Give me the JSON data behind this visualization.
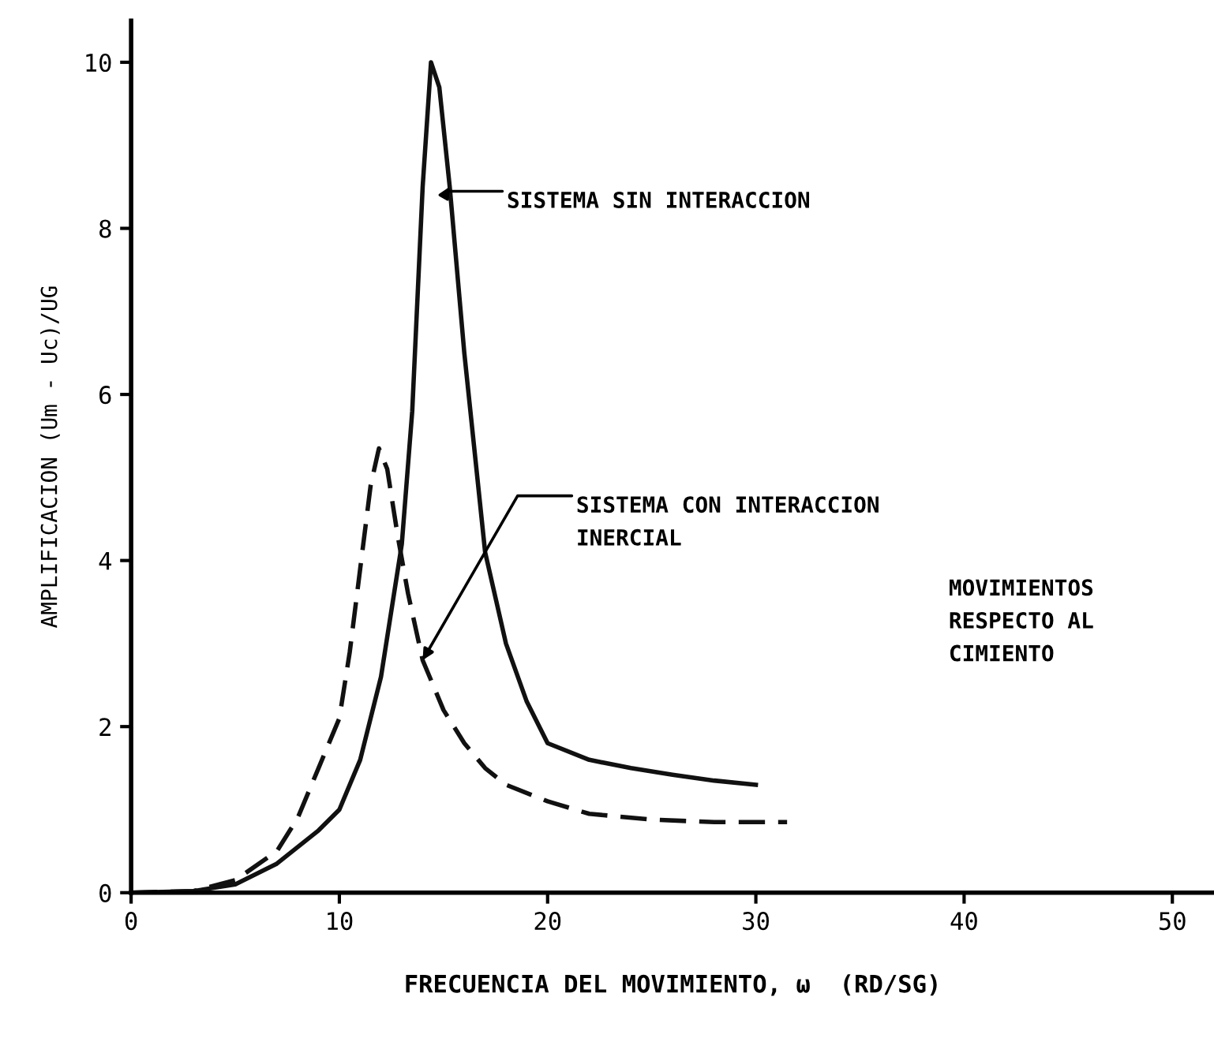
{
  "chart_data": {
    "type": "line",
    "xlabel": "FRECUENCIA DEL MOVIMIENTO, ω  (RD/SG)",
    "ylabel": "AMPLIFICACION (Um - Uc)/UG",
    "xlim": [
      0,
      52
    ],
    "ylim": [
      0,
      10.5
    ],
    "xticks": [
      0,
      10,
      20,
      30,
      40,
      50
    ],
    "yticks": [
      0,
      2,
      4,
      6,
      8,
      10
    ],
    "grid": false,
    "legend": false,
    "series": [
      {
        "color": "#111111",
        "line_style": "solid",
        "x": [
          0,
          3,
          5,
          7,
          9,
          10,
          11,
          12,
          13,
          13.5,
          14,
          14.4,
          14.8,
          15.3,
          16,
          17,
          18,
          19,
          20,
          22,
          24,
          26,
          28,
          30
        ],
        "values": [
          0,
          0.02,
          0.1,
          0.35,
          0.75,
          1.0,
          1.6,
          2.6,
          4.2,
          5.8,
          8.5,
          10,
          9.7,
          8.5,
          6.5,
          4.1,
          3.0,
          2.3,
          1.8,
          1.6,
          1.5,
          1.42,
          1.35,
          1.3
        ]
      },
      {
        "color": "#111111",
        "line_style": "dashed",
        "x": [
          0,
          3,
          5,
          7,
          8,
          9,
          10,
          10.5,
          11,
          11.5,
          11.9,
          12.3,
          12.8,
          13.3,
          14,
          15,
          16,
          17,
          18,
          20,
          22,
          25,
          28,
          31.5
        ],
        "values": [
          0,
          0.02,
          0.15,
          0.5,
          0.9,
          1.5,
          2.1,
          2.9,
          3.9,
          4.9,
          5.35,
          5.1,
          4.3,
          3.6,
          2.8,
          2.2,
          1.8,
          1.5,
          1.3,
          1.1,
          0.95,
          0.88,
          0.85,
          0.85
        ]
      }
    ],
    "annotations": [
      {
        "text": "SISTEMA SIN INTERACCION",
        "x": 15.3,
        "y": 8.5
      },
      {
        "text": "SISTEMA CON INTERACCION\nINERCIAL",
        "x": 14,
        "y": 2.8
      },
      "MOVIMIENTOS\nRESPECTO AL\nCIMIENTO"
    ]
  }
}
